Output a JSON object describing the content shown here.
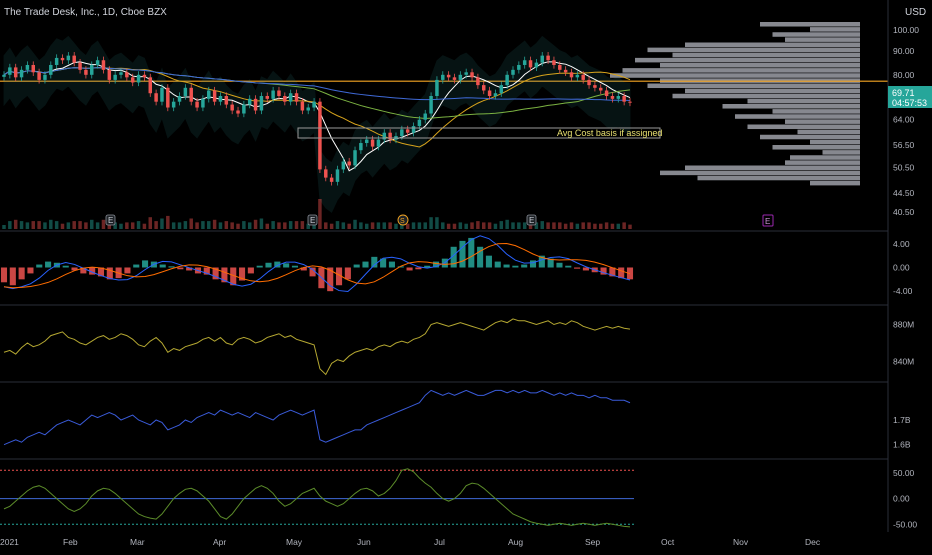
{
  "header": {
    "symbol_title": "The Trade Desk, Inc., 1D, Cboe BZX",
    "currency": "USD"
  },
  "colors": {
    "background": "#000000",
    "up": "#26a69a",
    "down": "#ef5350",
    "hline": "#f5a623",
    "price_badge": "#26a69a",
    "macd_line": "#2962ff",
    "signal_line": "#ff6d00",
    "sma_fast": "#ffffff",
    "sma_mid": "#d8a41c",
    "sma_slow_1": "#7cb342",
    "sma_slow_2": "#3f6ad8",
    "envelope": "#2b8a8a",
    "obv": "#b5a832",
    "adl": "#3a5bd9",
    "osc": "#5c8c2a",
    "profile": "#9ea0a8",
    "text": "#b2b5be"
  },
  "price_badge": {
    "price": "69.71",
    "countdown": "04:57:53"
  },
  "annotation": {
    "text": "Avg Cost basis if assigned"
  },
  "event_markers": {
    "earnings": "E",
    "dividend": "S",
    "future_earnings": "E"
  },
  "chart_data": [
    {
      "type": "candlestick",
      "title": "The Trade Desk, Inc., 1D, Cboe BZX",
      "y_ticks": [
        "100.00",
        "90.00",
        "80.00",
        "72.00",
        "64.00",
        "56.50",
        "50.50",
        "44.50",
        "40.50"
      ],
      "y_scale": "log",
      "ylim": [
        37,
        104
      ],
      "x_ticks": [
        "2021",
        "Feb",
        "Mar",
        "Apr",
        "May",
        "Jun",
        "Jul",
        "Aug",
        "Sep",
        "Oct",
        "Nov",
        "Dec"
      ],
      "last_price": 69.71,
      "horizontal_line": 77.5,
      "annotation_level": 58.5,
      "close_series": [
        80,
        83,
        79,
        82,
        84,
        81,
        78,
        80,
        84,
        87,
        86,
        88,
        85,
        82,
        80,
        84,
        86,
        82,
        78,
        80,
        81,
        79,
        77,
        80,
        79,
        73,
        70,
        75,
        68,
        70,
        72,
        75,
        70,
        68,
        71,
        74,
        70,
        72,
        69,
        67,
        66,
        69,
        71,
        67,
        72,
        71,
        74,
        72,
        70,
        73,
        70,
        67,
        68,
        70,
        50,
        48,
        47,
        50,
        52,
        51,
        55,
        57,
        58,
        56,
        58,
        60,
        58,
        59,
        61,
        60,
        62,
        64,
        66,
        72,
        78,
        80,
        79,
        78,
        80,
        81,
        79,
        76,
        74,
        72,
        73,
        76,
        80,
        82,
        84,
        86,
        83,
        85,
        88,
        86,
        84,
        82,
        81,
        79,
        80,
        78,
        76,
        75,
        74,
        72,
        71,
        72,
        70,
        69.71
      ],
      "volume_profile": [
        0.4,
        0.2,
        0.35,
        0.3,
        0.7,
        0.85,
        0.75,
        0.9,
        0.8,
        0.95,
        1.0,
        0.8,
        0.85,
        0.7,
        0.75,
        0.45,
        0.55,
        0.35,
        0.5,
        0.3,
        0.45,
        0.25,
        0.4,
        0.2,
        0.35,
        0.15,
        0.28,
        0.3,
        0.7,
        0.8,
        0.65,
        0.2
      ]
    },
    {
      "type": "bar",
      "title": "",
      "y_ticks": [
        "4.00",
        "0.00",
        "-4.00"
      ],
      "ylim": [
        -6,
        6
      ],
      "histogram": [
        -2.5,
        -3,
        -2,
        -1,
        0.5,
        1,
        0.8,
        0.3,
        -0.5,
        -1,
        -1.2,
        -1.5,
        -2,
        -1.8,
        -1,
        0.5,
        1.2,
        1,
        0.5,
        0.2,
        -0.3,
        -0.5,
        -1,
        -1.2,
        -2,
        -2.5,
        -3,
        -2.2,
        -1,
        0.3,
        0.8,
        1,
        0.7,
        0.3,
        -0.5,
        -1.5,
        -3.5,
        -4,
        -3,
        -2,
        0.5,
        1,
        1.8,
        1.5,
        1,
        0.2,
        -0.5,
        -0.3,
        0.3,
        1,
        1.5,
        3.5,
        4.5,
        5,
        3.5,
        2,
        1,
        0.5,
        0.3,
        0.5,
        1.2,
        2,
        1.5,
        0.8,
        0.3,
        -0.2,
        -0.5,
        -0.8,
        -1.2,
        -1.5,
        -1.8,
        -2
      ]
    },
    {
      "type": "line",
      "title": "",
      "y_ticks": [
        "880M",
        "840M"
      ],
      "ylim": [
        820,
        900
      ],
      "values": [
        850,
        852,
        848,
        855,
        860,
        856,
        858,
        862,
        868,
        870,
        872,
        866,
        864,
        860,
        858,
        862,
        866,
        868,
        864,
        866,
        870,
        868,
        864,
        858,
        856,
        862,
        866,
        860,
        850,
        854,
        852,
        856,
        858,
        860,
        864,
        866,
        862,
        866,
        860,
        858,
        864,
        866,
        864,
        860,
        862,
        866,
        868,
        870,
        866,
        868,
        864,
        862,
        860,
        858,
        832,
        826,
        838,
        842,
        840,
        846,
        850,
        852,
        854,
        852,
        856,
        858,
        856,
        860,
        862,
        860,
        864,
        866,
        870,
        880,
        882,
        880,
        878,
        880,
        882,
        880,
        878,
        876,
        874,
        878,
        882,
        884,
        882,
        886,
        884,
        884,
        882,
        880,
        882,
        884,
        880,
        882,
        880,
        884,
        882,
        878,
        876,
        874,
        876,
        878,
        876,
        878,
        876,
        875
      ]
    },
    {
      "type": "line",
      "title": "",
      "y_ticks": [
        "1.7B",
        "1.6B"
      ],
      "ylim": [
        1.55,
        1.85
      ],
      "values": [
        1.6,
        1.61,
        1.62,
        1.61,
        1.63,
        1.64,
        1.65,
        1.64,
        1.66,
        1.68,
        1.69,
        1.7,
        1.69,
        1.68,
        1.7,
        1.72,
        1.71,
        1.72,
        1.73,
        1.72,
        1.7,
        1.71,
        1.72,
        1.7,
        1.69,
        1.68,
        1.7,
        1.69,
        1.66,
        1.67,
        1.68,
        1.7,
        1.69,
        1.71,
        1.72,
        1.73,
        1.72,
        1.74,
        1.73,
        1.72,
        1.73,
        1.72,
        1.71,
        1.73,
        1.72,
        1.71,
        1.7,
        1.72,
        1.73,
        1.74,
        1.73,
        1.72,
        1.73,
        1.74,
        1.62,
        1.61,
        1.62,
        1.63,
        1.64,
        1.65,
        1.66,
        1.66,
        1.68,
        1.69,
        1.7,
        1.71,
        1.72,
        1.73,
        1.74,
        1.75,
        1.76,
        1.77,
        1.8,
        1.82,
        1.81,
        1.8,
        1.81,
        1.8,
        1.81,
        1.82,
        1.81,
        1.8,
        1.8,
        1.81,
        1.82,
        1.82,
        1.81,
        1.82,
        1.81,
        1.82,
        1.81,
        1.81,
        1.82,
        1.81,
        1.8,
        1.81,
        1.8,
        1.81,
        1.8,
        1.8,
        1.79,
        1.8,
        1.79,
        1.79,
        1.78,
        1.78,
        1.78,
        1.77
      ]
    },
    {
      "type": "line",
      "title": "",
      "y_ticks": [
        "50.00",
        "0.00",
        "-50.00"
      ],
      "ylim": [
        -65,
        75
      ],
      "upper_band": 55,
      "lower_band": -50,
      "values": [
        -20,
        -15,
        -5,
        5,
        15,
        22,
        25,
        20,
        10,
        0,
        -10,
        -20,
        -25,
        -20,
        -10,
        5,
        15,
        20,
        18,
        10,
        0,
        -10,
        -20,
        -30,
        -35,
        -38,
        -40,
        -30,
        -15,
        0,
        10,
        18,
        20,
        15,
        5,
        -5,
        -20,
        -35,
        -40,
        -30,
        -15,
        0,
        10,
        20,
        25,
        20,
        10,
        -5,
        -15,
        -10,
        0,
        10,
        15,
        20,
        5,
        -5,
        -10,
        -15,
        -10,
        0,
        10,
        18,
        20,
        15,
        5,
        10,
        20,
        35,
        55,
        58,
        52,
        40,
        30,
        22,
        10,
        0,
        -5,
        0,
        10,
        25,
        30,
        28,
        20,
        10,
        0,
        -10,
        -20,
        -30,
        -35,
        -40,
        -45,
        -48,
        -50,
        -52,
        -50,
        -48,
        -50,
        -52,
        -50,
        -48,
        -50,
        -52,
        -50,
        -48,
        -50,
        -52,
        -54,
        -55
      ]
    }
  ]
}
